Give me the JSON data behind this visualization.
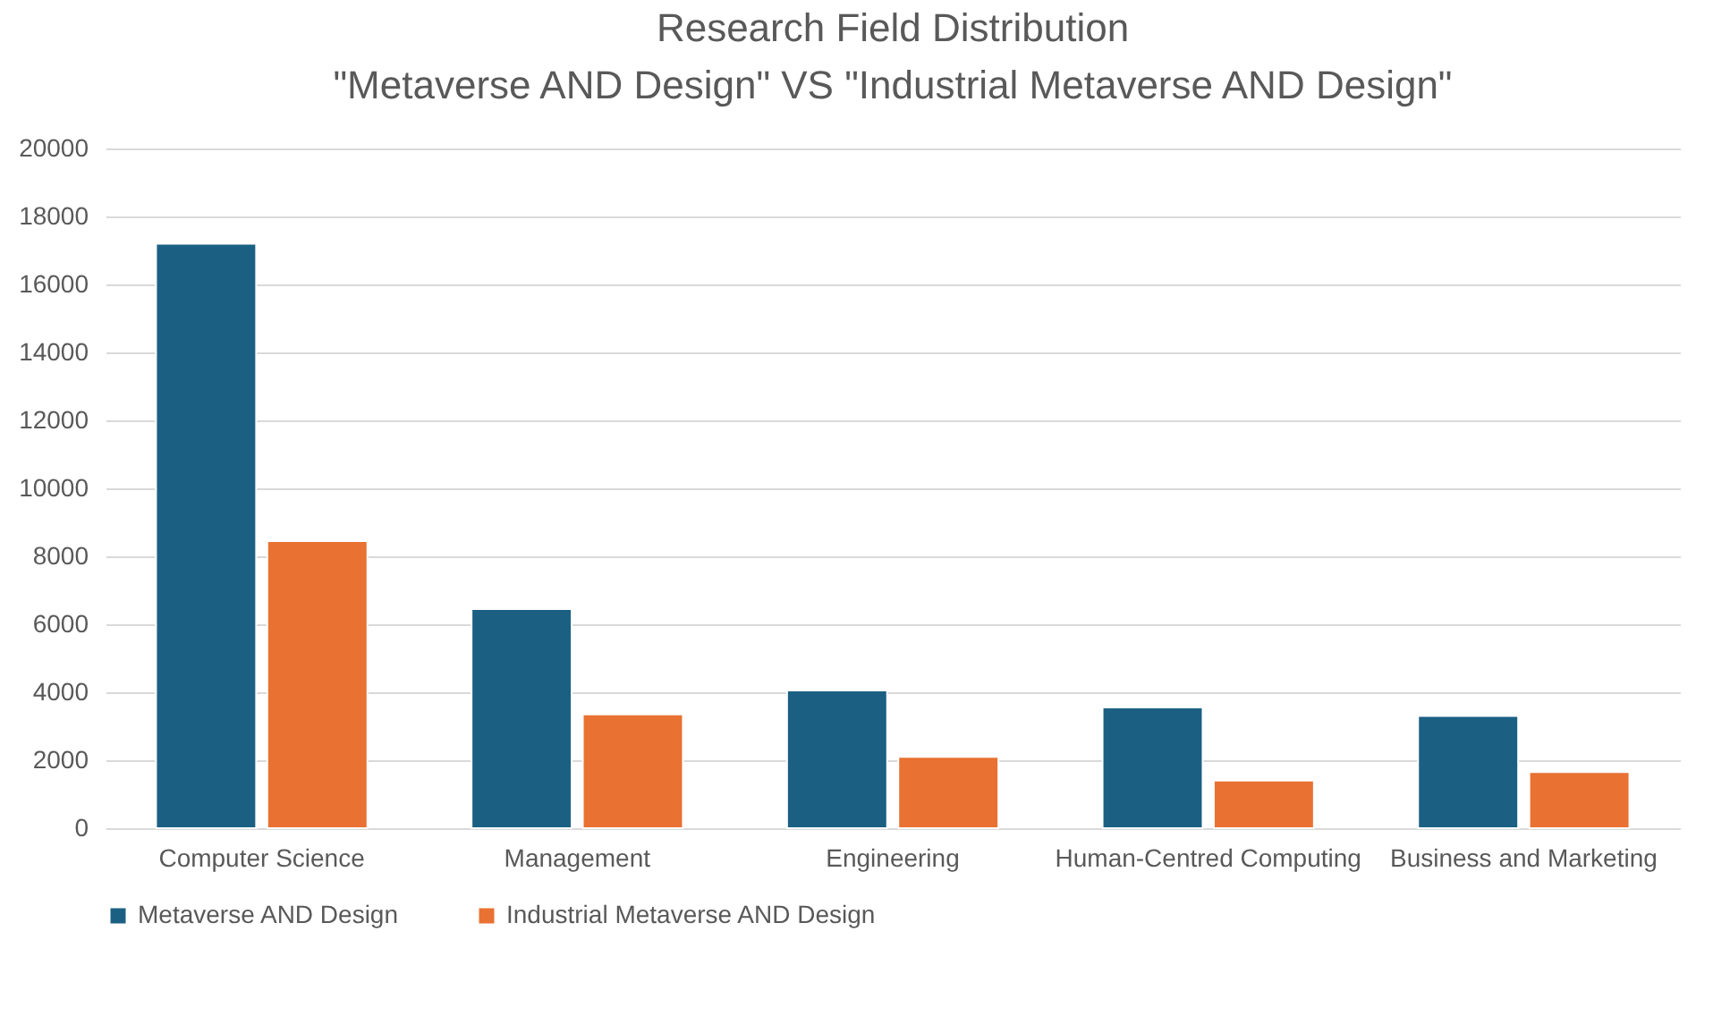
{
  "chart_data": {
    "type": "bar",
    "title": "Research Field Distribution\n\"Metaverse AND Design\" VS \"Industrial Metaverse AND Design\"",
    "categories": [
      "Computer Science",
      "Management",
      "Engineering",
      "Human-Centred Computing",
      "Business and Marketing"
    ],
    "series": [
      {
        "name": "Metaverse AND Design",
        "color": "#1b6083",
        "values": [
          17200,
          6450,
          4050,
          3550,
          3300
        ]
      },
      {
        "name": "Industrial Metaverse AND Design",
        "color": "#e97132",
        "values": [
          8450,
          3350,
          2100,
          1400,
          1650
        ]
      }
    ],
    "ylim": [
      0,
      20000
    ],
    "yticks": [
      0,
      2000,
      4000,
      6000,
      8000,
      10000,
      12000,
      14000,
      16000,
      18000,
      20000
    ],
    "grid": "y",
    "legend": "bottom"
  }
}
